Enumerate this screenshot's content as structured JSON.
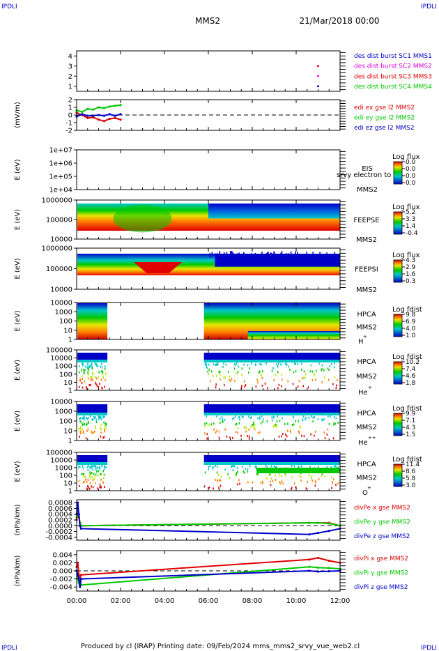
{
  "header": {
    "corner_label": "IPDLI",
    "title": "MMS2",
    "datetime": "21/Mar/2018 00:00"
  },
  "footer": {
    "text": "Produced by cl (IRAP)   Printing date: 09/Feb/2024   mms_mms2_srvy_vue_web2.cl"
  },
  "x_axis": {
    "ticks": [
      "00:00",
      "02:00",
      "04:00",
      "06:00",
      "08:00",
      "10:00",
      "12:00"
    ]
  },
  "colors": {
    "red": "#e00000",
    "green": "#00c800",
    "blue": "#0000c8",
    "magenta": "#e000e0"
  },
  "chart_data": [
    {
      "type": "line",
      "panel": "burst",
      "ylabel": "",
      "yticks": [
        "1",
        "2",
        "3",
        "4"
      ],
      "ylim": [
        0.5,
        4.5
      ],
      "legend": [
        {
          "name": "des dist burst SC1 MMS1",
          "color": "#0000c8"
        },
        {
          "name": "des dist burst SC2 MMS2",
          "color": "#e000e0"
        },
        {
          "name": "des dist burst SC3 MMS3",
          "color": "#e00000"
        },
        {
          "name": "des dist burst SC4 MMS4",
          "color": "#00c800"
        }
      ],
      "series": [
        {
          "name": "des dist burst SC2 MMS2",
          "x": [
            11.0
          ],
          "values": [
            2.0
          ]
        },
        {
          "name": "des dist burst SC1 MMS1",
          "x": [
            11.0
          ],
          "values": [
            1.0
          ]
        },
        {
          "name": "des dist burst SC3 MMS3",
          "x": [
            11.0
          ],
          "values": [
            3.0
          ]
        }
      ]
    },
    {
      "type": "line",
      "panel": "edi",
      "ylabel": "(mV/m)",
      "yticks": [
        "-2",
        "-1",
        "0",
        "1",
        "2"
      ],
      "ylim": [
        -2,
        2
      ],
      "legend": [
        {
          "name": "edi ex gse l2 MMS2",
          "color": "#e00000"
        },
        {
          "name": "edi ey gse l2 MMS2",
          "color": "#00c800"
        },
        {
          "name": "edi ez gse l2 MMS2",
          "color": "#0000c8"
        }
      ],
      "series": [
        {
          "name": "edi ex gse l2 MMS2",
          "x": [
            0.0,
            0.25,
            0.5,
            0.75,
            1.0,
            1.25,
            1.5,
            1.75,
            2.0
          ],
          "values": [
            0.3,
            0.0,
            -0.4,
            -0.3,
            -0.6,
            -0.8,
            -0.5,
            -0.4,
            -0.6
          ]
        },
        {
          "name": "edi ey gse l2 MMS2",
          "x": [
            0.0,
            0.25,
            0.5,
            0.75,
            1.0,
            1.25,
            1.5,
            1.75,
            2.0
          ],
          "values": [
            0.6,
            0.4,
            0.8,
            0.7,
            1.0,
            0.9,
            1.1,
            1.2,
            1.3
          ]
        },
        {
          "name": "edi ez gse l2 MMS2",
          "x": [
            0.0,
            0.25,
            0.5,
            0.75,
            1.0,
            1.25,
            1.5,
            1.75,
            2.0
          ],
          "values": [
            -0.2,
            0.1,
            -0.1,
            -0.1,
            0.0,
            -0.1,
            0.1,
            -0.1,
            0.1
          ]
        }
      ]
    },
    {
      "type": "heatmap",
      "panel": "eis",
      "ylabel": "E (eV)",
      "yticks": [
        "1e+04",
        "1e+05",
        "1e+06",
        "1e+07"
      ],
      "instrument": [
        "EIS",
        "MMS2"
      ],
      "overlay_text": "srvy electron to",
      "colorbar": {
        "title": "Log flux",
        "ticks": [
          "0.0",
          "0.0",
          "0.0",
          "0.0"
        ]
      },
      "values": []
    },
    {
      "type": "heatmap",
      "panel": "feepse",
      "ylabel": "E (eV)",
      "yticks": [
        "10000",
        "100000",
        "1000000"
      ],
      "instrument": [
        "FEEPSE",
        "MMS2"
      ],
      "colorbar": {
        "title": "Log flux",
        "ticks": [
          "5.2",
          "3.3",
          "1.4",
          "-0.4"
        ]
      }
    },
    {
      "type": "heatmap",
      "panel": "feepsi",
      "ylabel": "E (eV)",
      "yticks": [
        "10000",
        "100000",
        "1000000"
      ],
      "instrument": [
        "FEEPSI",
        "MMS2"
      ],
      "colorbar": {
        "title": "Log flux",
        "ticks": [
          "4.3",
          "2.9",
          "1.6",
          "0.3"
        ]
      }
    },
    {
      "type": "heatmap",
      "panel": "hpca-h",
      "ylabel": "E (eV)",
      "yticks": [
        "1",
        "10",
        "100",
        "1000",
        "10000"
      ],
      "instrument": [
        "HPCA",
        "MMS2",
        "H",
        "+"
      ],
      "colorbar": {
        "title": "Log fdist",
        "ticks": [
          "9.8",
          "6.9",
          "4.0",
          "1.0"
        ]
      }
    },
    {
      "type": "heatmap",
      "panel": "hpca-he",
      "ylabel": "E (eV)",
      "yticks": [
        "1",
        "10",
        "100",
        "1000",
        "10000",
        "100000"
      ],
      "instrument": [
        "HPCA",
        "MMS2",
        "He",
        "+"
      ],
      "colorbar": {
        "title": "Log fdist",
        "ticks": [
          "10.2",
          "7.4",
          "4.6",
          "1.8"
        ]
      }
    },
    {
      "type": "heatmap",
      "panel": "hpca-he2",
      "ylabel": "E (eV)",
      "yticks": [
        "1",
        "10",
        "100",
        "1000",
        "10000"
      ],
      "instrument": [
        "HPCA",
        "MMS2",
        "He",
        "++"
      ],
      "colorbar": {
        "title": "Log fdist",
        "ticks": [
          "9.9",
          "7.1",
          "4.3",
          "1.5"
        ]
      }
    },
    {
      "type": "heatmap",
      "panel": "hpca-o",
      "ylabel": "E (eV)",
      "yticks": [
        "1",
        "10",
        "100",
        "1000",
        "10000",
        "100000"
      ],
      "instrument": [
        "HPCA",
        "MMS2",
        "O",
        "+"
      ],
      "colorbar": {
        "title": "Log fdist",
        "ticks": [
          "11.4",
          "8.6",
          "5.8",
          "3.0"
        ]
      }
    },
    {
      "type": "line",
      "panel": "divpe",
      "ylabel": "(nPa/km)",
      "yticks": [
        "-0.0004",
        "-0.0002",
        "0.0000",
        "0.0002",
        "0.0004",
        "0.0006",
        "0.0008"
      ],
      "ylim": [
        -0.0005,
        0.0009
      ],
      "legend": [
        {
          "name": "divPe x gse MMS2",
          "color": "#e00000"
        },
        {
          "name": "divPe y gse MMS2",
          "color": "#00c800"
        },
        {
          "name": "divPe z gse MMS2",
          "color": "#0000c8"
        }
      ],
      "series": [
        {
          "name": "divPe x gse MMS2",
          "x": [
            0.0,
            0.05,
            0.1,
            0.15,
            0.2,
            10.6,
            11.0,
            11.5,
            12.0
          ],
          "values": [
            0.0002,
            0.0005,
            0.0003,
            0.0001,
            0.0,
            0.0001,
            0.0001,
            0.0001,
            0.0
          ]
        },
        {
          "name": "divPe y gse MMS2",
          "x": [
            0.0,
            0.05,
            0.1,
            0.15,
            0.2,
            10.6,
            11.0,
            11.5,
            12.0
          ],
          "values": [
            0.0003,
            0.0006,
            0.0004,
            0.0001,
            0.0,
            0.0001,
            0.0001,
            8e-05,
            0.0
          ]
        },
        {
          "name": "divPe z gse MMS2",
          "x": [
            0.0,
            0.05,
            0.1,
            0.15,
            0.2,
            10.6,
            11.0,
            11.5,
            12.0
          ],
          "values": [
            0.0004,
            0.0008,
            0.0004,
            0.0,
            -0.0001,
            -0.0003,
            -0.00025,
            -0.00018,
            -0.0001
          ]
        }
      ]
    },
    {
      "type": "line",
      "panel": "divpi",
      "ylabel": "(nPa/km)",
      "yticks": [
        "-0.004",
        "-0.002",
        "0.000",
        "0.002",
        "0.004"
      ],
      "ylim": [
        -0.005,
        0.005
      ],
      "legend": [
        {
          "name": "divPi x gse MMS2",
          "color": "#e00000"
        },
        {
          "name": "divPi y gse MMS2",
          "color": "#00c800"
        },
        {
          "name": "divPi z gse MMS2",
          "color": "#0000c8"
        }
      ],
      "series": [
        {
          "name": "divPi x gse MMS2",
          "x": [
            0.0,
            0.05,
            0.1,
            0.15,
            0.2,
            10.6,
            11.0,
            11.5,
            12.0
          ],
          "values": [
            0.001,
            0.002,
            -0.001,
            -0.002,
            -0.001,
            0.0028,
            0.0032,
            0.0025,
            0.002
          ]
        },
        {
          "name": "divPi y gse MMS2",
          "x": [
            0.0,
            0.05,
            0.1,
            0.15,
            0.2,
            10.6,
            11.0,
            11.5,
            12.0
          ],
          "values": [
            0.0,
            -0.002,
            -0.003,
            -0.002,
            -0.0035,
            0.001,
            0.0008,
            0.0007,
            0.0005
          ]
        },
        {
          "name": "divPi z gse MMS2",
          "x": [
            0.0,
            0.05,
            0.1,
            0.15,
            0.2,
            10.6,
            11.0,
            11.5,
            12.0
          ],
          "values": [
            0.0,
            -0.001,
            -0.002,
            -0.004,
            -0.002,
            0.0,
            -0.0002,
            -0.0001,
            0.0
          ]
        }
      ]
    }
  ]
}
